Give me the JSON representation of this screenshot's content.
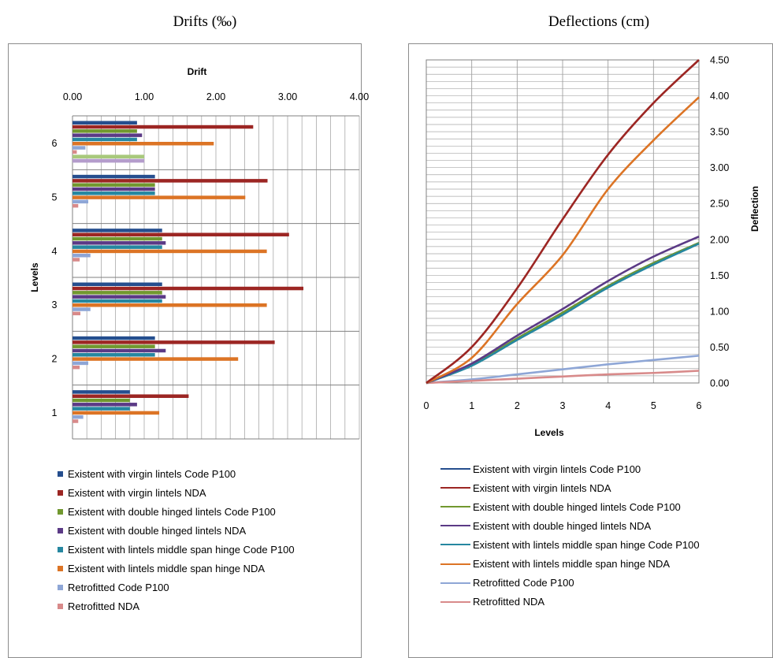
{
  "titles": {
    "left": "Drifts (‰)",
    "right": "Deflections (cm)"
  },
  "colors": {
    "virgin_p100": "#254e8e",
    "virgin_nda": "#9c2623",
    "double_p100": "#71982f",
    "double_nda": "#5b3a86",
    "midspan_p100": "#2687a0",
    "midspan_nda": "#dc7425",
    "retro_p100": "#8ea6d6",
    "retro_nda": "#d88a8a",
    "extra_bar_green": "#a8c97c",
    "extra_bar_purple": "#b49ccc"
  },
  "chart_data": [
    {
      "type": "bar",
      "orientation": "horizontal",
      "title": "Drift",
      "xlabel": "Drift",
      "ylabel": "Levels",
      "xlim": [
        0,
        4
      ],
      "xticks": [
        "0.00",
        "1.00",
        "2.00",
        "3.00",
        "4.00"
      ],
      "categories": [
        "1",
        "2",
        "3",
        "4",
        "5",
        "6"
      ],
      "grid": true,
      "legend": "bottom",
      "series": [
        {
          "name": "Existent with virgin lintels Code P100",
          "values": [
            0.8,
            1.15,
            1.25,
            1.25,
            1.15,
            0.9
          ]
        },
        {
          "name": "Existent with virgin lintels NDA",
          "values": [
            1.62,
            2.82,
            3.22,
            3.02,
            2.72,
            2.52
          ]
        },
        {
          "name": "Existent with double hinged lintels Code P100",
          "values": [
            0.8,
            1.15,
            1.25,
            1.25,
            1.15,
            0.9
          ]
        },
        {
          "name": "Existent with double hinged lintels NDA",
          "values": [
            0.9,
            1.3,
            1.3,
            1.3,
            1.15,
            0.97
          ]
        },
        {
          "name": "Existent with lintels middle span hinge Code P100",
          "values": [
            0.8,
            1.15,
            1.25,
            1.25,
            1.15,
            0.9
          ]
        },
        {
          "name": "Existent with lintels middle span hinge NDA",
          "values": [
            1.21,
            2.31,
            2.71,
            2.71,
            2.41,
            1.97
          ]
        },
        {
          "name": "Retrofitted Code P100",
          "values": [
            0.15,
            0.22,
            0.25,
            0.25,
            0.22,
            0.18
          ]
        },
        {
          "name": "Retrofitted NDA",
          "values": [
            0.08,
            0.1,
            0.11,
            0.1,
            0.08,
            0.06
          ]
        }
      ],
      "extra_bars": [
        {
          "category": "6",
          "value": 1.0,
          "color": "#a8c97c"
        },
        {
          "category": "6",
          "value": 1.0,
          "color": "#b49ccc"
        }
      ]
    },
    {
      "type": "line",
      "title": "Deflection",
      "xlabel": "Levels",
      "ylabel": "Deflection",
      "x": [
        0,
        1,
        2,
        3,
        4,
        5,
        6
      ],
      "xlim": [
        0,
        6
      ],
      "ylim": [
        0,
        4.5
      ],
      "xticks": [
        "0",
        "1",
        "2",
        "3",
        "4",
        "5",
        "6"
      ],
      "yticks": [
        "0.00",
        "0.50",
        "1.00",
        "1.50",
        "2.00",
        "2.50",
        "3.00",
        "3.50",
        "4.00",
        "4.50"
      ],
      "grid": true,
      "legend": "bottom",
      "series": [
        {
          "name": "Existent with virgin lintels Code P100",
          "values": [
            0,
            0.25,
            0.62,
            0.98,
            1.35,
            1.67,
            1.95
          ]
        },
        {
          "name": "Existent with virgin lintels NDA",
          "values": [
            0,
            0.5,
            1.32,
            2.28,
            3.18,
            3.9,
            4.5
          ]
        },
        {
          "name": "Existent with double hinged lintels Code P100",
          "values": [
            0,
            0.25,
            0.62,
            0.98,
            1.35,
            1.67,
            1.95
          ]
        },
        {
          "name": "Existent with double hinged lintels NDA",
          "values": [
            0,
            0.27,
            0.66,
            1.03,
            1.42,
            1.76,
            2.04
          ]
        },
        {
          "name": "Existent with lintels middle span hinge Code P100",
          "values": [
            0,
            0.24,
            0.6,
            0.95,
            1.33,
            1.65,
            1.94
          ]
        },
        {
          "name": "Existent with lintels middle span hinge NDA",
          "values": [
            0,
            0.35,
            1.1,
            1.78,
            2.7,
            3.38,
            3.98
          ]
        },
        {
          "name": "Retrofitted Code P100",
          "values": [
            0,
            0.05,
            0.12,
            0.19,
            0.26,
            0.32,
            0.38
          ]
        },
        {
          "name": "Retrofitted NDA",
          "values": [
            0,
            0.03,
            0.06,
            0.09,
            0.12,
            0.14,
            0.17
          ]
        }
      ]
    }
  ]
}
